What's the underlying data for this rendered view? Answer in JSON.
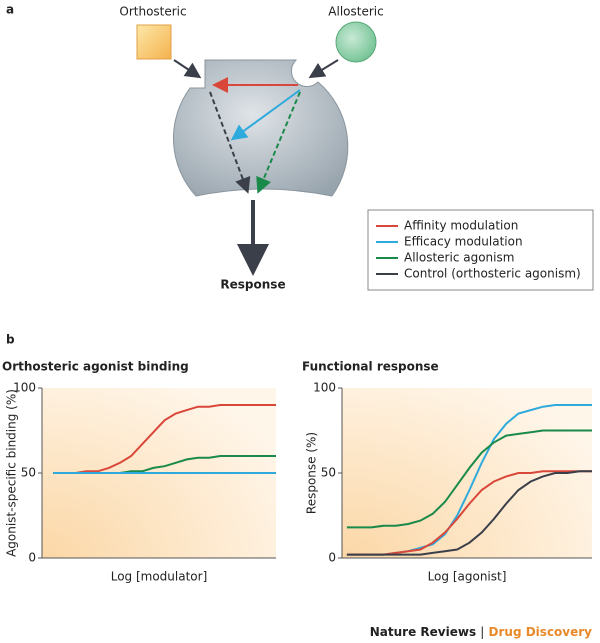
{
  "panel_a": {
    "label": "a",
    "orthosteric": "Orthosteric",
    "allosteric": "Allosteric",
    "response": "Response"
  },
  "legend": [
    {
      "label": "Affinity modulation",
      "color": "#d9473a"
    },
    {
      "label": "Efficacy modulation",
      "color": "#2eaadc"
    },
    {
      "label": "Allosteric agonism",
      "color": "#1a8a4a"
    },
    {
      "label": "Control (orthosteric agonism)",
      "color": "#3b3f4a"
    }
  ],
  "panel_b": {
    "label": "b"
  },
  "chart_data": [
    {
      "type": "line",
      "title": "Orthosteric agonist binding",
      "xlabel": "Log [modulator]",
      "ylabel": "Agonist-specific binding (%)",
      "x": [
        0,
        0.5,
        1,
        1.5,
        2,
        2.5,
        3,
        3.5,
        4,
        4.5,
        5,
        5.5,
        6,
        6.5,
        7,
        7.5,
        8,
        8.5,
        9,
        9.5,
        10
      ],
      "xlim": [
        -0.5,
        10
      ],
      "ylim": [
        0,
        100
      ],
      "yticks": [
        0,
        50,
        100
      ],
      "series": [
        {
          "color": "#d9473a",
          "values": [
            50,
            50,
            50,
            51,
            51,
            53,
            56,
            60,
            67,
            74,
            81,
            85,
            87,
            89,
            89,
            90,
            90,
            90,
            90,
            90,
            90
          ]
        },
        {
          "color": "#1a8a4a",
          "values": [
            50,
            50,
            50,
            50,
            50,
            50,
            50,
            51,
            51,
            53,
            54,
            56,
            58,
            59,
            59,
            60,
            60,
            60,
            60,
            60,
            60
          ]
        },
        {
          "color": "#2eaadc",
          "values": [
            50,
            50,
            50,
            50,
            50,
            50,
            50,
            50,
            50,
            50,
            50,
            50,
            50,
            50,
            50,
            50,
            50,
            50,
            50,
            50,
            50
          ]
        }
      ]
    },
    {
      "type": "line",
      "title": "Functional response",
      "xlabel": "Log [agonist]",
      "ylabel": "Response (%)",
      "x": [
        0,
        0.5,
        1,
        1.5,
        2,
        2.5,
        3,
        3.5,
        4,
        4.5,
        5,
        5.5,
        6,
        6.5,
        7,
        7.5,
        8,
        8.5,
        9,
        9.5,
        10
      ],
      "xlim": [
        -0.2,
        10
      ],
      "ylim": [
        0,
        100
      ],
      "yticks": [
        0,
        50,
        100
      ],
      "series": [
        {
          "color": "#2eaadc",
          "values": [
            2,
            2,
            2,
            2,
            3,
            4,
            6,
            8,
            14,
            25,
            40,
            56,
            70,
            79,
            85,
            87,
            89,
            90,
            90,
            90,
            90
          ]
        },
        {
          "color": "#1a8a4a",
          "values": [
            18,
            18,
            18,
            19,
            19,
            20,
            22,
            26,
            33,
            43,
            53,
            62,
            68,
            72,
            73,
            74,
            75,
            75,
            75,
            75,
            75
          ]
        },
        {
          "color": "#d9473a",
          "values": [
            2,
            2,
            2,
            2,
            3,
            4,
            5,
            9,
            15,
            23,
            32,
            40,
            45,
            48,
            50,
            50,
            51,
            51,
            51,
            51,
            51
          ]
        },
        {
          "color": "#3b3f4a",
          "values": [
            2,
            2,
            2,
            2,
            2,
            2,
            2,
            3,
            4,
            5,
            9,
            15,
            23,
            32,
            40,
            45,
            48,
            50,
            50,
            51,
            51
          ]
        }
      ]
    }
  ],
  "footer": {
    "journal": "Nature Reviews",
    "separator": "|",
    "section": "Drug Discovery"
  }
}
